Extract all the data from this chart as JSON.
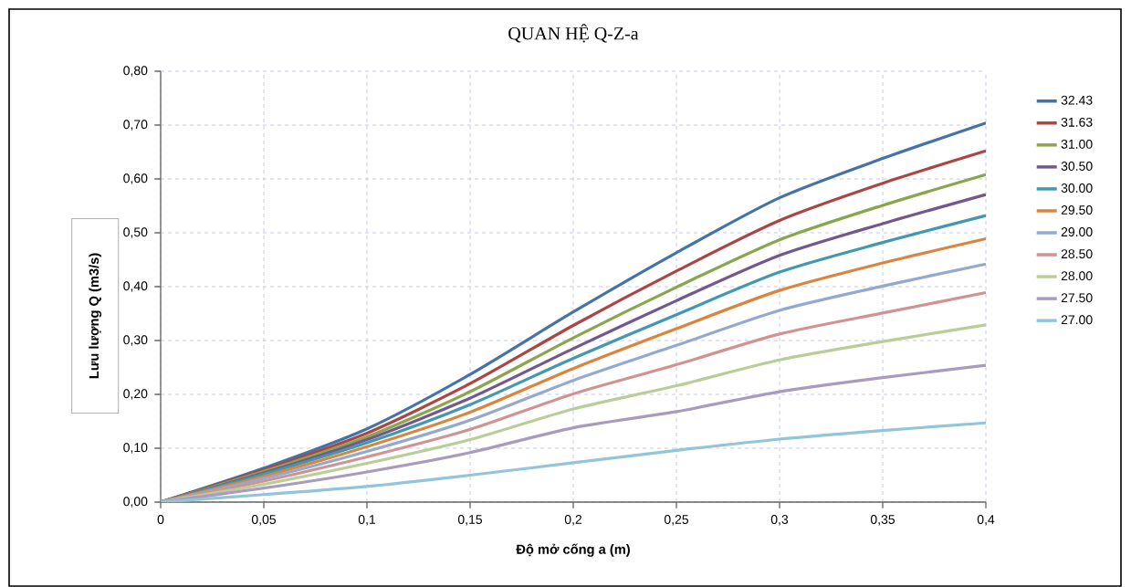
{
  "chart_data": {
    "type": "line",
    "title": "QUAN HỆ Q-Z-a",
    "xlabel": "Độ mở cống a (m)",
    "ylabel": "Lưu lượng Q (m3/s)",
    "x": [
      0,
      0.05,
      0.1,
      0.15,
      0.2,
      0.25,
      0.3,
      0.35,
      0.4
    ],
    "xlim": [
      0,
      0.4
    ],
    "ylim": [
      0,
      0.8
    ],
    "xticks": [
      0,
      {
        "value": 0.05,
        "label": "0,05"
      },
      {
        "value": 0.1,
        "label": "0,1"
      },
      {
        "value": 0.15,
        "label": "0,15"
      },
      {
        "value": 0.2,
        "label": "0,2"
      },
      {
        "value": 0.25,
        "label": "0,25"
      },
      {
        "value": 0.3,
        "label": "0,3"
      },
      {
        "value": 0.35,
        "label": "0,35"
      },
      {
        "value": 0.4,
        "label": "0,4"
      }
    ],
    "yticks": [
      {
        "value": 0,
        "label": "0,00"
      },
      {
        "value": 0.1,
        "label": "0,10"
      },
      {
        "value": 0.2,
        "label": "0,20"
      },
      {
        "value": 0.3,
        "label": "0,30"
      },
      {
        "value": 0.4,
        "label": "0,40"
      },
      {
        "value": 0.5,
        "label": "0,50"
      },
      {
        "value": 0.6,
        "label": "0,60"
      },
      {
        "value": 0.7,
        "label": "0,70"
      },
      {
        "value": 0.8,
        "label": "0,80"
      }
    ],
    "grid": true,
    "legend": "right",
    "marker": "none",
    "line_style": "solid",
    "series": [
      {
        "name": "32.43",
        "color": "#4572a7",
        "values": [
          0,
          0.063,
          0.136,
          0.237,
          0.353,
          0.463,
          0.565,
          0.638,
          0.704
        ]
      },
      {
        "name": "31.63",
        "color": "#aa4643",
        "values": [
          0,
          0.06,
          0.128,
          0.22,
          0.328,
          0.429,
          0.523,
          0.592,
          0.652
        ]
      },
      {
        "name": "31.00",
        "color": "#89a54e",
        "values": [
          0,
          0.057,
          0.121,
          0.205,
          0.305,
          0.399,
          0.487,
          0.551,
          0.608
        ]
      },
      {
        "name": "30.50",
        "color": "#71588f",
        "values": [
          0,
          0.054,
          0.116,
          0.193,
          0.285,
          0.374,
          0.458,
          0.517,
          0.571
        ]
      },
      {
        "name": "30.00",
        "color": "#4198af",
        "values": [
          0,
          0.052,
          0.11,
          0.181,
          0.267,
          0.348,
          0.427,
          0.482,
          0.532
        ]
      },
      {
        "name": "29.50",
        "color": "#db843d",
        "values": [
          0,
          0.048,
          0.103,
          0.167,
          0.248,
          0.322,
          0.393,
          0.444,
          0.489
        ]
      },
      {
        "name": "29.00",
        "color": "#93a9cf",
        "values": [
          0,
          0.044,
          0.094,
          0.152,
          0.226,
          0.291,
          0.356,
          0.401,
          0.442
        ]
      },
      {
        "name": "28.50",
        "color": "#d19392",
        "values": [
          0,
          0.039,
          0.084,
          0.135,
          0.201,
          0.255,
          0.312,
          0.351,
          0.389
        ]
      },
      {
        "name": "28.00",
        "color": "#b9cd96",
        "values": [
          0,
          0.033,
          0.072,
          0.116,
          0.173,
          0.216,
          0.264,
          0.298,
          0.329
        ]
      },
      {
        "name": "27.50",
        "color": "#a99bbd",
        "values": [
          0,
          0.026,
          0.056,
          0.092,
          0.138,
          0.168,
          0.205,
          0.231,
          0.254
        ]
      },
      {
        "name": "27.00",
        "color": "#92c5d9",
        "values": [
          0,
          0.014,
          0.029,
          0.05,
          0.073,
          0.096,
          0.117,
          0.133,
          0.147
        ]
      }
    ]
  }
}
